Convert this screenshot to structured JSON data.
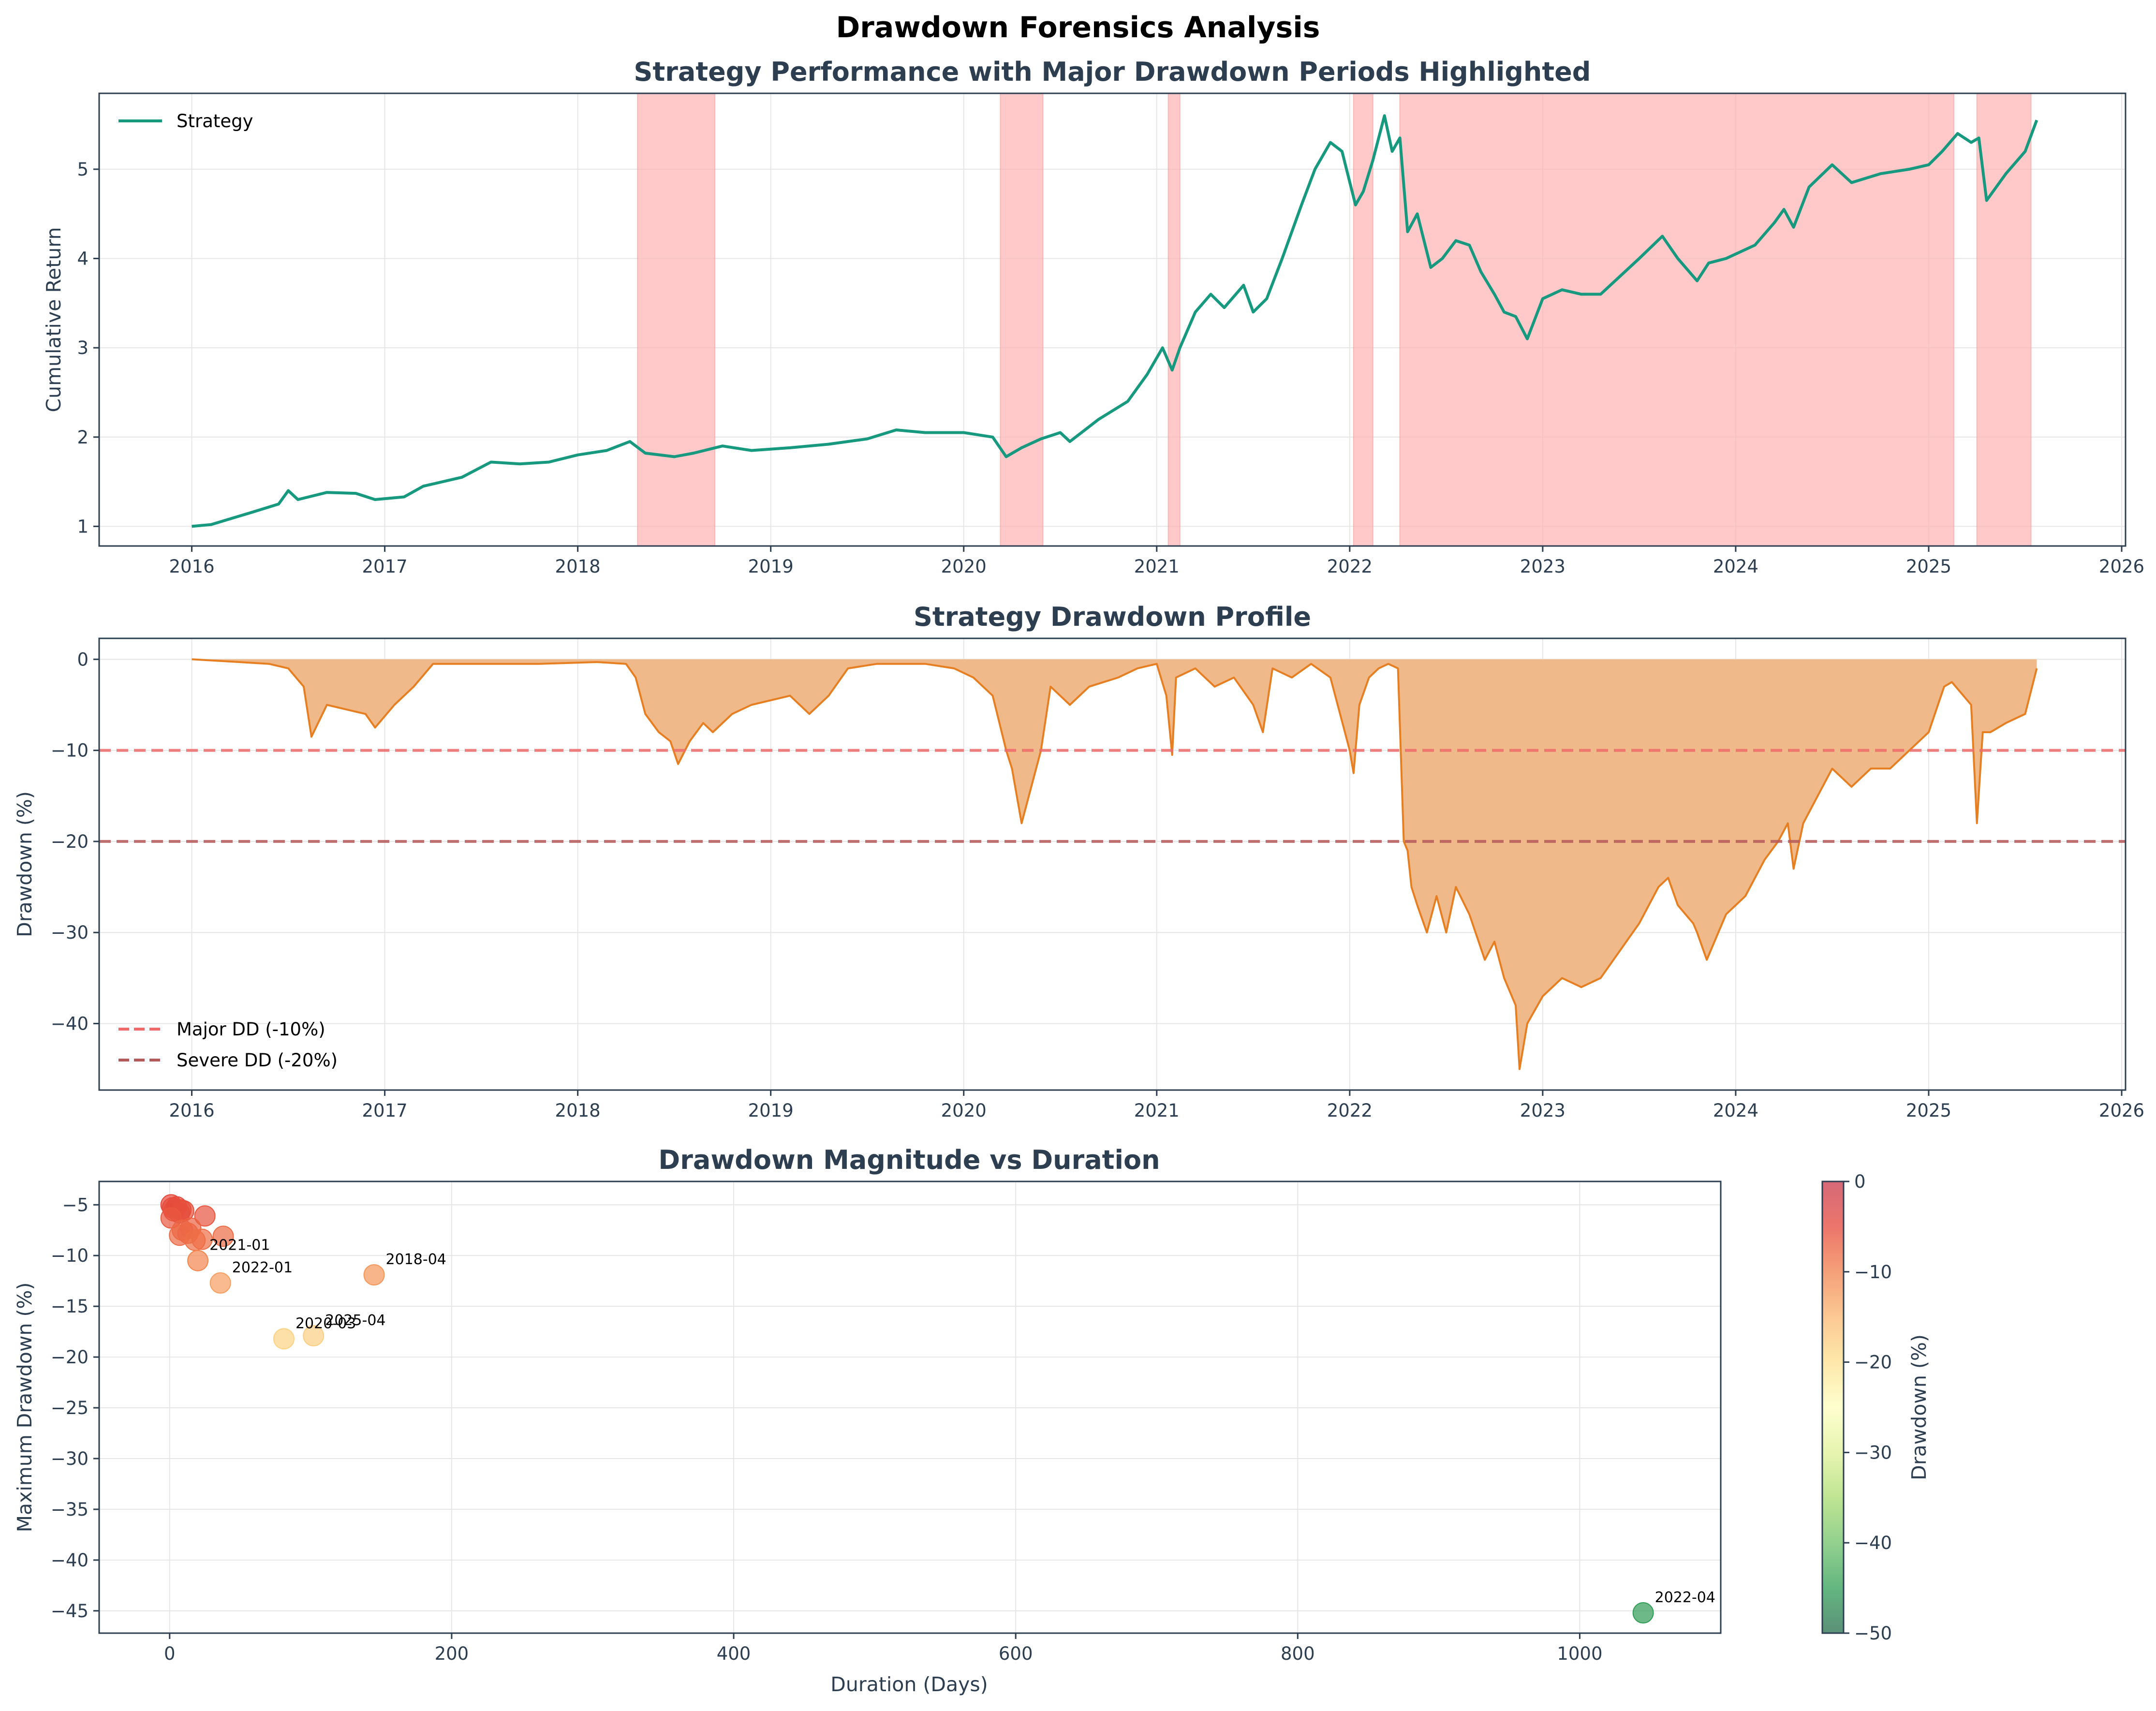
{
  "title": "Drawdown Forensics Analysis",
  "colors": {
    "strategy": "#16997f",
    "drawdown_line": "#e67e22",
    "drawdown_fill": "#f0b98a",
    "highlight": "#ffb3b3",
    "major_line": "#ef6b6b",
    "severe_line": "#b55a5a",
    "frame": "#2c3e50"
  },
  "chart_data": [
    {
      "type": "line",
      "title": "Strategy Performance with Major Drawdown Periods Highlighted",
      "xlabel": "",
      "ylabel": "Cumulative Return",
      "xlim": [
        2015.52,
        2026.02
      ],
      "ylim": [
        0.78,
        5.85
      ],
      "xticks": [
        2016,
        2017,
        2018,
        2019,
        2020,
        2021,
        2022,
        2023,
        2024,
        2025,
        2026
      ],
      "yticks": [
        1,
        2,
        3,
        4,
        5
      ],
      "grid": true,
      "legend": "top-left",
      "series": [
        {
          "name": "Strategy",
          "x": [
            2016.0,
            2016.1,
            2016.3,
            2016.45,
            2016.5,
            2016.55,
            2016.7,
            2016.85,
            2016.95,
            2017.1,
            2017.2,
            2017.4,
            2017.55,
            2017.7,
            2017.85,
            2018.0,
            2018.15,
            2018.27,
            2018.35,
            2018.5,
            2018.6,
            2018.75,
            2018.9,
            2019.1,
            2019.3,
            2019.5,
            2019.65,
            2019.8,
            2020.0,
            2020.15,
            2020.22,
            2020.3,
            2020.4,
            2020.5,
            2020.55,
            2020.7,
            2020.85,
            2020.95,
            2021.03,
            2021.08,
            2021.12,
            2021.2,
            2021.28,
            2021.35,
            2021.45,
            2021.5,
            2021.57,
            2021.65,
            2021.75,
            2021.82,
            2021.9,
            2021.96,
            2022.03,
            2022.07,
            2022.12,
            2022.18,
            2022.22,
            2022.26,
            2022.3,
            2022.35,
            2022.42,
            2022.48,
            2022.55,
            2022.62,
            2022.68,
            2022.75,
            2022.8,
            2022.86,
            2022.92,
            2023.0,
            2023.1,
            2023.2,
            2023.3,
            2023.4,
            2023.5,
            2023.62,
            2023.7,
            2023.8,
            2023.86,
            2023.95,
            2024.1,
            2024.2,
            2024.25,
            2024.3,
            2024.38,
            2024.5,
            2024.6,
            2024.75,
            2024.9,
            2025.0,
            2025.07,
            2025.15,
            2025.22,
            2025.26,
            2025.3,
            2025.4,
            2025.5,
            2025.56
          ],
          "values": [
            1.0,
            1.02,
            1.15,
            1.25,
            1.4,
            1.3,
            1.38,
            1.37,
            1.3,
            1.33,
            1.45,
            1.55,
            1.72,
            1.7,
            1.72,
            1.8,
            1.85,
            1.95,
            1.82,
            1.78,
            1.82,
            1.9,
            1.85,
            1.88,
            1.92,
            1.98,
            2.08,
            2.05,
            2.05,
            2.0,
            1.78,
            1.88,
            1.98,
            2.05,
            1.95,
            2.2,
            2.4,
            2.7,
            3.0,
            2.75,
            3.0,
            3.4,
            3.6,
            3.45,
            3.7,
            3.4,
            3.55,
            4.0,
            4.6,
            5.0,
            5.3,
            5.2,
            4.6,
            4.75,
            5.1,
            5.6,
            5.2,
            5.35,
            4.3,
            4.5,
            3.9,
            4.0,
            4.2,
            4.15,
            3.85,
            3.6,
            3.4,
            3.35,
            3.1,
            3.55,
            3.65,
            3.6,
            3.6,
            3.8,
            4.0,
            4.25,
            4.0,
            3.75,
            3.95,
            4.0,
            4.15,
            4.4,
            4.55,
            4.35,
            4.8,
            5.05,
            4.85,
            4.95,
            5.0,
            5.05,
            5.2,
            5.4,
            5.3,
            5.35,
            4.65,
            4.95,
            5.2,
            5.55
          ]
        }
      ],
      "highlight_periods": [
        [
          2018.31,
          2018.71
        ],
        [
          2020.19,
          2020.41
        ],
        [
          2021.06,
          2021.12
        ],
        [
          2022.02,
          2022.12
        ],
        [
          2022.26,
          2025.13
        ],
        [
          2025.25,
          2025.53
        ]
      ]
    },
    {
      "type": "area",
      "title": "Strategy Drawdown Profile",
      "xlabel": "",
      "ylabel": "Drawdown (%)",
      "xlim": [
        2015.52,
        2026.02
      ],
      "ylim": [
        -47.3,
        2.3
      ],
      "xticks": [
        2016,
        2017,
        2018,
        2019,
        2020,
        2021,
        2022,
        2023,
        2024,
        2025,
        2026
      ],
      "yticks": [
        0,
        -10,
        -20,
        -30,
        -40
      ],
      "grid": true,
      "legend": "bottom-left",
      "series": [
        {
          "name": "Drawdown",
          "x": [
            2016.0,
            2016.4,
            2016.5,
            2016.58,
            2016.62,
            2016.7,
            2016.8,
            2016.9,
            2016.95,
            2017.05,
            2017.15,
            2017.25,
            2017.5,
            2017.8,
            2018.1,
            2018.25,
            2018.3,
            2018.35,
            2018.42,
            2018.48,
            2018.52,
            2018.58,
            2018.65,
            2018.7,
            2018.8,
            2018.9,
            2019.1,
            2019.2,
            2019.3,
            2019.4,
            2019.55,
            2019.7,
            2019.8,
            2019.95,
            2020.05,
            2020.15,
            2020.22,
            2020.25,
            2020.3,
            2020.4,
            2020.45,
            2020.55,
            2020.65,
            2020.8,
            2020.9,
            2021.0,
            2021.05,
            2021.08,
            2021.1,
            2021.2,
            2021.3,
            2021.4,
            2021.5,
            2021.55,
            2021.6,
            2021.7,
            2021.8,
            2021.9,
            2021.95,
            2022.0,
            2022.02,
            2022.05,
            2022.1,
            2022.15,
            2022.2,
            2022.25,
            2022.28,
            2022.3,
            2022.32,
            2022.35,
            2022.4,
            2022.45,
            2022.5,
            2022.55,
            2022.62,
            2022.7,
            2022.75,
            2022.8,
            2022.86,
            2022.88,
            2022.92,
            2023.0,
            2023.1,
            2023.2,
            2023.3,
            2023.4,
            2023.5,
            2023.6,
            2023.65,
            2023.7,
            2023.78,
            2023.8,
            2023.85,
            2023.95,
            2024.05,
            2024.15,
            2024.22,
            2024.27,
            2024.3,
            2024.35,
            2024.45,
            2024.5,
            2024.6,
            2024.7,
            2024.8,
            2024.9,
            2025.0,
            2025.08,
            2025.12,
            2025.18,
            2025.22,
            2025.25,
            2025.28,
            2025.32,
            2025.4,
            2025.5,
            2025.56
          ],
          "values": [
            0,
            -0.5,
            -1,
            -3,
            -8.5,
            -5,
            -5.5,
            -6,
            -7.5,
            -5,
            -3,
            -0.5,
            -0.5,
            -0.5,
            -0.3,
            -0.5,
            -2,
            -6,
            -8,
            -9,
            -11.5,
            -9,
            -7,
            -8,
            -6,
            -5,
            -4,
            -6,
            -4,
            -1,
            -0.5,
            -0.5,
            -0.5,
            -1,
            -2,
            -4,
            -10,
            -12,
            -18,
            -10,
            -3,
            -5,
            -3,
            -2,
            -1,
            -0.5,
            -4,
            -10.5,
            -2,
            -1,
            -3,
            -2,
            -5,
            -8,
            -1,
            -2,
            -0.5,
            -2,
            -6,
            -10,
            -12.5,
            -5,
            -2,
            -1,
            -0.5,
            -1,
            -20,
            -21,
            -25,
            -27,
            -30,
            -26,
            -30,
            -25,
            -28,
            -33,
            -31,
            -35,
            -38,
            -45,
            -40,
            -37,
            -35,
            -36,
            -35,
            -32,
            -29,
            -25,
            -24,
            -27,
            -29,
            -30,
            -33,
            -28,
            -26,
            -22,
            -20,
            -18,
            -23,
            -18,
            -14,
            -12,
            -14,
            -12,
            -12,
            -10,
            -8,
            -3,
            -2.5,
            -4,
            -5,
            -18,
            -8,
            -8,
            -7,
            -6,
            -1
          ]
        }
      ],
      "reference_lines": [
        {
          "name": "Major DD (-10%)",
          "y": -10
        },
        {
          "name": "Severe DD (-20%)",
          "y": -20
        }
      ]
    },
    {
      "type": "scatter",
      "title": "Drawdown Magnitude vs Duration",
      "xlabel": "Duration (Days)",
      "ylabel": "Maximum Drawdown (%)",
      "xlim": [
        -50,
        1100
      ],
      "ylim": [
        -47.2,
        -2.7
      ],
      "xticks": [
        0,
        200,
        400,
        600,
        800,
        1000
      ],
      "yticks": [
        -5,
        -10,
        -15,
        -20,
        -25,
        -30,
        -35,
        -40,
        -45
      ],
      "grid": true,
      "colorbar": {
        "label": "Drawdown (%)",
        "range": [
          -50,
          0
        ],
        "ticks": [
          0,
          -10,
          -20,
          -30,
          -40,
          -50
        ]
      },
      "points": [
        {
          "x": 1,
          "y": -5.0,
          "label": ""
        },
        {
          "x": 2,
          "y": -5.3,
          "label": ""
        },
        {
          "x": 3,
          "y": -5.6,
          "label": ""
        },
        {
          "x": 5,
          "y": -5.2,
          "label": ""
        },
        {
          "x": 7,
          "y": -5.8,
          "label": ""
        },
        {
          "x": 8,
          "y": -5.5,
          "label": ""
        },
        {
          "x": 10,
          "y": -5.6,
          "label": ""
        },
        {
          "x": 1,
          "y": -6.3,
          "label": ""
        },
        {
          "x": 25,
          "y": -6.1,
          "label": ""
        },
        {
          "x": 9,
          "y": -7.5,
          "label": ""
        },
        {
          "x": 15,
          "y": -7.3,
          "label": ""
        },
        {
          "x": 7,
          "y": -8.0,
          "label": ""
        },
        {
          "x": 13,
          "y": -7.8,
          "label": ""
        },
        {
          "x": 18,
          "y": -8.5,
          "label": ""
        },
        {
          "x": 23,
          "y": -8.4,
          "label": ""
        },
        {
          "x": 38,
          "y": -8.1,
          "label": ""
        },
        {
          "x": 20,
          "y": -10.5,
          "label": "2021-01"
        },
        {
          "x": 36,
          "y": -12.7,
          "label": "2022-01"
        },
        {
          "x": 145,
          "y": -11.9,
          "label": "2018-04"
        },
        {
          "x": 81,
          "y": -18.2,
          "label": "2020-03"
        },
        {
          "x": 102,
          "y": -17.9,
          "label": "2025-04"
        },
        {
          "x": 1045,
          "y": -45.2,
          "label": "2022-04"
        }
      ]
    }
  ],
  "legend": {
    "strategy": "Strategy",
    "major": "Major DD (-10%)",
    "severe": "Severe DD (-20%)"
  }
}
